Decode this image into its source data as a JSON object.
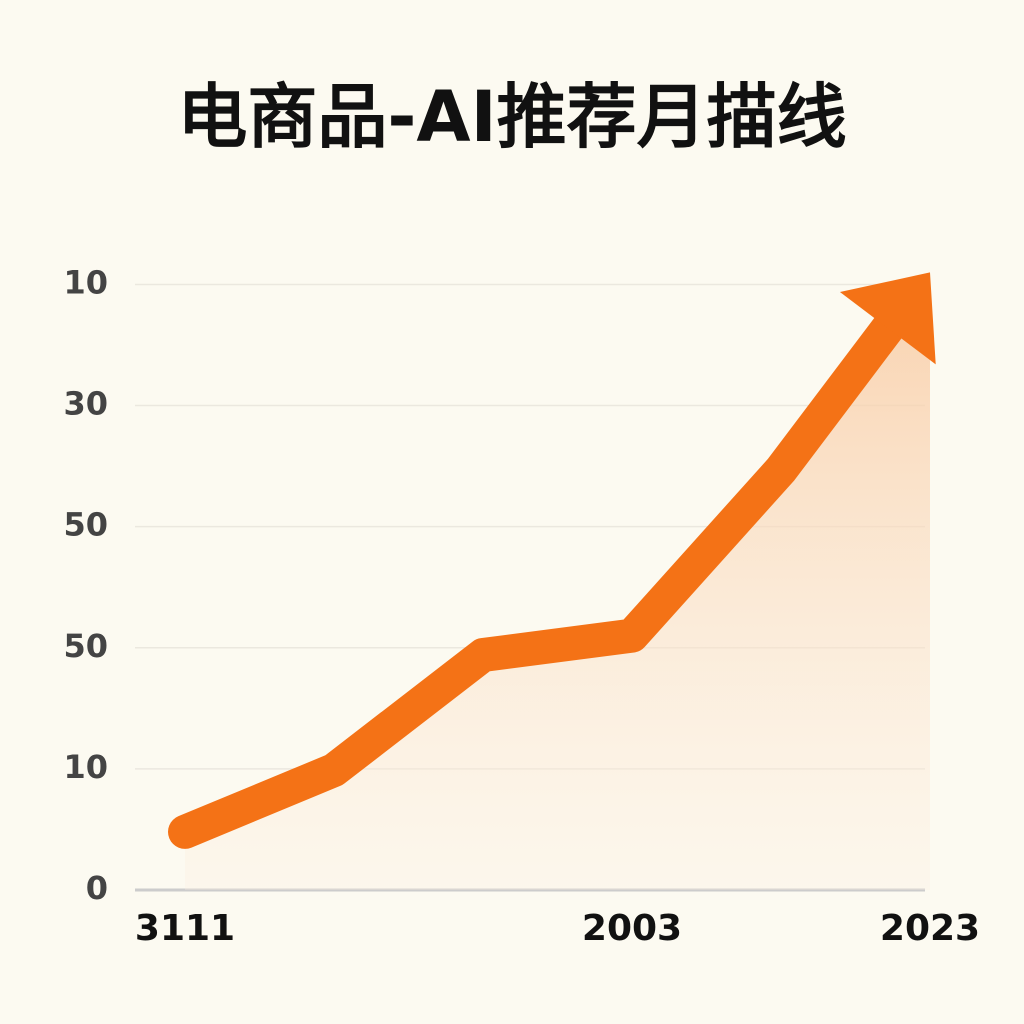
{
  "chart_data": {
    "type": "line",
    "title": "电商品-AI推荐月描线",
    "categories": [
      "3111",
      null,
      null,
      "2003",
      null,
      "2023"
    ],
    "series": [
      {
        "color": "#f47216",
        "values": [
          0.48,
          0.99,
          1.94,
          2.1,
          3.47,
          5.1
        ]
      }
    ],
    "ylim": [
      0,
      5.4
    ],
    "yticks": [
      {
        "value": 0,
        "label": "0"
      },
      {
        "value": 1,
        "label": "10"
      },
      {
        "value": 2,
        "label": "50"
      },
      {
        "value": 3,
        "label": "50"
      },
      {
        "value": 4,
        "label": "30"
      },
      {
        "value": 5,
        "label": "10"
      }
    ],
    "grid": true
  }
}
